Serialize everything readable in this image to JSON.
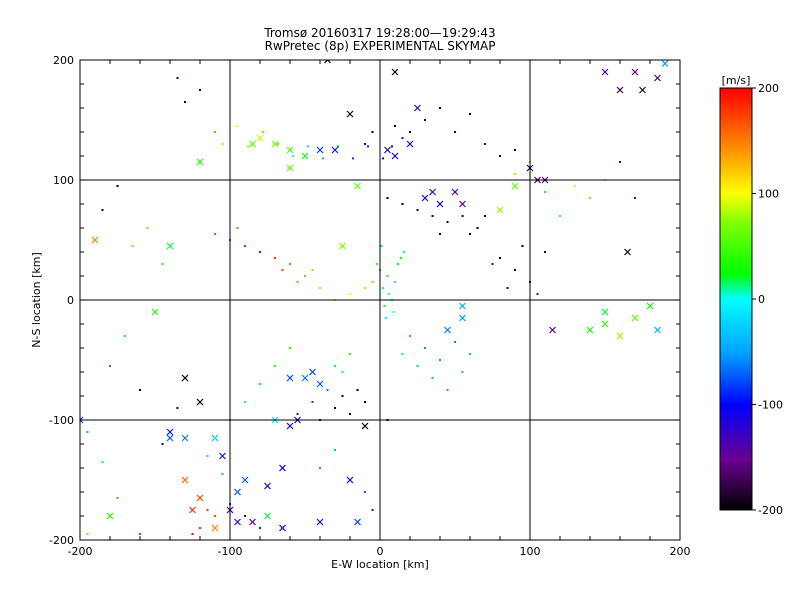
{
  "chart_data": {
    "type": "scatter",
    "title": "Tromsø 20160317 19:28:00—19:29:43",
    "subtitle": "RwPretec (8p) EXPERIMENTAL SKYMAP",
    "xlabel": "E-W location [km]",
    "ylabel": "N-S location [km]",
    "xlim": [
      -200,
      200
    ],
    "ylim": [
      -200,
      200
    ],
    "xticks": [
      "-200",
      "-100",
      "0",
      "100",
      "200"
    ],
    "yticks": [
      "-200",
      "-100",
      "0",
      "100",
      "200"
    ],
    "grid": true,
    "colorbar": {
      "label": "[m/s]",
      "min": -200,
      "max": 200,
      "ticks": [
        "-200",
        "-100",
        "0",
        "100",
        "200"
      ]
    },
    "series": [
      {
        "marker": "x",
        "points": [
          [
            -85,
            130,
            60
          ],
          [
            -80,
            135,
            90
          ],
          [
            -70,
            130,
            70
          ],
          [
            -60,
            125,
            50
          ],
          [
            -50,
            120,
            30
          ],
          [
            -40,
            125,
            -80
          ],
          [
            -30,
            125,
            -90
          ],
          [
            5,
            125,
            -120
          ],
          [
            10,
            120,
            -110
          ],
          [
            20,
            130,
            -120
          ],
          [
            30,
            85,
            -120
          ],
          [
            35,
            90,
            -130
          ],
          [
            40,
            80,
            -110
          ],
          [
            50,
            90,
            -140
          ],
          [
            55,
            80,
            -150
          ],
          [
            80,
            75,
            80
          ],
          [
            90,
            95,
            60
          ],
          [
            100,
            110,
            -180
          ],
          [
            105,
            100,
            -170
          ],
          [
            110,
            100,
            -160
          ],
          [
            -60,
            110,
            60
          ],
          [
            -120,
            115,
            30
          ],
          [
            -140,
            45,
            20
          ],
          [
            -190,
            50,
            150
          ],
          [
            -15,
            95,
            60
          ],
          [
            -40,
            -70,
            -70
          ],
          [
            -45,
            -60,
            -80
          ],
          [
            -50,
            -65,
            -60
          ],
          [
            -55,
            -100,
            -110
          ],
          [
            -60,
            -105,
            -120
          ],
          [
            -90,
            -150,
            -70
          ],
          [
            -95,
            -160,
            -80
          ],
          [
            -100,
            -175,
            -140
          ],
          [
            -85,
            -185,
            -150
          ],
          [
            -120,
            -165,
            170
          ],
          [
            -125,
            -175,
            180
          ],
          [
            -110,
            -190,
            150
          ],
          [
            -130,
            -150,
            160
          ],
          [
            -180,
            -180,
            40
          ],
          [
            -200,
            -100,
            -80
          ],
          [
            -140,
            -115,
            -70
          ],
          [
            -130,
            -115,
            -60
          ],
          [
            -110,
            -115,
            -40
          ],
          [
            -70,
            -100,
            -10
          ],
          [
            -65,
            -190,
            -100
          ],
          [
            -40,
            -185,
            -130
          ],
          [
            -20,
            -150,
            -110
          ],
          [
            -15,
            -185,
            -80
          ],
          [
            -75,
            -180,
            20
          ],
          [
            115,
            -25,
            -140
          ],
          [
            140,
            -25,
            30
          ],
          [
            150,
            -20,
            40
          ],
          [
            160,
            -30,
            80
          ],
          [
            170,
            -15,
            60
          ],
          [
            180,
            -5,
            30
          ],
          [
            150,
            -10,
            20
          ],
          [
            185,
            -25,
            -40
          ],
          [
            165,
            40,
            -190
          ],
          [
            170,
            190,
            -150
          ],
          [
            185,
            185,
            -160
          ],
          [
            175,
            175,
            -180
          ],
          [
            160,
            175,
            -170
          ],
          [
            150,
            190,
            -130
          ],
          [
            190,
            197,
            -50
          ],
          [
            -150,
            -10,
            30
          ],
          [
            -140,
            -110,
            -90
          ],
          [
            -60,
            -65,
            -75
          ],
          [
            -20,
            155,
            -190
          ],
          [
            25,
            160,
            -120
          ],
          [
            -25,
            45,
            70
          ],
          [
            55,
            -5,
            -40
          ],
          [
            55,
            -15,
            -50
          ],
          [
            45,
            -25,
            -60
          ],
          [
            -130,
            -65,
            -200
          ],
          [
            -120,
            -85,
            -200
          ],
          [
            -10,
            -105,
            -200
          ],
          [
            -35,
            200,
            -190
          ],
          [
            10,
            190,
            -200
          ],
          [
            -95,
            -185,
            -130
          ],
          [
            -105,
            -130,
            -90
          ],
          [
            -75,
            -155,
            -110
          ],
          [
            -65,
            -140,
            -100
          ]
        ]
      },
      {
        "marker": "dot",
        "points": [
          [
            -110,
            140,
            150
          ],
          [
            -105,
            130,
            120
          ],
          [
            -95,
            145,
            100
          ],
          [
            -88,
            128,
            80
          ],
          [
            -78,
            140,
            60
          ],
          [
            -68,
            130,
            40
          ],
          [
            -58,
            120,
            0
          ],
          [
            -48,
            128,
            -20
          ],
          [
            -38,
            118,
            -40
          ],
          [
            -28,
            128,
            -60
          ],
          [
            -18,
            118,
            -80
          ],
          [
            -8,
            128,
            -90
          ],
          [
            2,
            118,
            -100
          ],
          [
            8,
            128,
            -110
          ],
          [
            15,
            135,
            -120
          ],
          [
            -5,
            140,
            -200
          ],
          [
            10,
            145,
            -200
          ],
          [
            20,
            140,
            -180
          ],
          [
            -10,
            130,
            -170
          ],
          [
            5,
            85,
            -200
          ],
          [
            15,
            80,
            -200
          ],
          [
            25,
            75,
            -190
          ],
          [
            35,
            70,
            -200
          ],
          [
            45,
            65,
            -200
          ],
          [
            55,
            70,
            -190
          ],
          [
            65,
            60,
            -200
          ],
          [
            70,
            70,
            -180
          ],
          [
            60,
            55,
            -200
          ],
          [
            40,
            55,
            -190
          ],
          [
            0,
            25,
            20
          ],
          [
            5,
            20,
            40
          ],
          [
            10,
            15,
            10
          ],
          [
            2,
            10,
            -10
          ],
          [
            6,
            5,
            0
          ],
          [
            8,
            0,
            10
          ],
          [
            3,
            -5,
            30
          ],
          [
            9,
            -10,
            0
          ],
          [
            4,
            -15,
            -10
          ],
          [
            12,
            30,
            20
          ],
          [
            14,
            35,
            30
          ],
          [
            16,
            40,
            10
          ],
          [
            -2,
            30,
            50
          ],
          [
            1,
            45,
            30
          ],
          [
            -5,
            15,
            60
          ],
          [
            -10,
            10,
            80
          ],
          [
            -20,
            5,
            100
          ],
          [
            -30,
            0,
            110
          ],
          [
            -40,
            10,
            120
          ],
          [
            -45,
            25,
            130
          ],
          [
            -50,
            20,
            140
          ],
          [
            -55,
            15,
            150
          ],
          [
            -60,
            30,
            160
          ],
          [
            -65,
            25,
            170
          ],
          [
            -70,
            35,
            180
          ],
          [
            -80,
            40,
            200
          ],
          [
            -90,
            45,
            190
          ],
          [
            -100,
            50,
            180
          ],
          [
            -110,
            55,
            170
          ],
          [
            -95,
            60,
            160
          ],
          [
            20,
            -30,
            -40
          ],
          [
            30,
            -40,
            -50
          ],
          [
            40,
            -50,
            -60
          ],
          [
            25,
            -55,
            -30
          ],
          [
            35,
            -65,
            -40
          ],
          [
            45,
            -75,
            -50
          ],
          [
            15,
            -45,
            -20
          ],
          [
            50,
            -35,
            -60
          ],
          [
            60,
            -45,
            -30
          ],
          [
            55,
            -60,
            -40
          ],
          [
            -20,
            -45,
            40
          ],
          [
            -25,
            -60,
            10
          ],
          [
            -30,
            -55,
            20
          ],
          [
            -35,
            -75,
            -60
          ],
          [
            -45,
            -85,
            -80
          ],
          [
            -55,
            -95,
            -90
          ],
          [
            -40,
            -100,
            -110
          ],
          [
            -30,
            -90,
            -200
          ],
          [
            -25,
            -80,
            -190
          ],
          [
            -15,
            -75,
            -200
          ],
          [
            -20,
            -95,
            -180
          ],
          [
            -10,
            -85,
            -200
          ],
          [
            -60,
            -40,
            40
          ],
          [
            -70,
            -55,
            30
          ],
          [
            -80,
            -70,
            20
          ],
          [
            -90,
            -85,
            10
          ],
          [
            -100,
            -100,
            0
          ],
          [
            -110,
            -115,
            -10
          ],
          [
            -115,
            -130,
            -20
          ],
          [
            -105,
            -145,
            -40
          ],
          [
            -95,
            -160,
            -60
          ],
          [
            -100,
            -170,
            -80
          ],
          [
            -90,
            -180,
            -120
          ],
          [
            -80,
            -190,
            -140
          ],
          [
            -110,
            -180,
            170
          ],
          [
            -120,
            -190,
            190
          ],
          [
            -125,
            -195,
            200
          ],
          [
            -115,
            -175,
            180
          ],
          [
            -160,
            -195,
            180
          ],
          [
            -175,
            -165,
            160
          ],
          [
            -195,
            -195,
            60
          ],
          [
            -160,
            -75,
            -200
          ],
          [
            -135,
            -90,
            -190
          ],
          [
            -145,
            -120,
            -180
          ],
          [
            100,
            115,
            60
          ],
          [
            90,
            105,
            80
          ],
          [
            110,
            90,
            40
          ],
          [
            120,
            70,
            20
          ],
          [
            130,
            95,
            90
          ],
          [
            140,
            85,
            70
          ],
          [
            150,
            100,
            110
          ],
          [
            160,
            115,
            -120
          ],
          [
            170,
            85,
            -140
          ],
          [
            80,
            35,
            -200
          ],
          [
            90,
            25,
            -190
          ],
          [
            100,
            15,
            -170
          ],
          [
            85,
            10,
            -180
          ],
          [
            95,
            45,
            -200
          ],
          [
            110,
            40,
            -180
          ],
          [
            75,
            30,
            -160
          ],
          [
            105,
            5,
            -150
          ],
          [
            30,
            150,
            -200
          ],
          [
            40,
            160,
            -190
          ],
          [
            50,
            140,
            -180
          ],
          [
            60,
            155,
            -200
          ],
          [
            70,
            130,
            -170
          ],
          [
            80,
            120,
            -190
          ],
          [
            90,
            125,
            -200
          ],
          [
            -130,
            165,
            -200
          ],
          [
            -120,
            175,
            -190
          ],
          [
            -135,
            185,
            -180
          ],
          [
            -175,
            95,
            -200
          ],
          [
            -185,
            75,
            -190
          ],
          [
            -155,
            60,
            70
          ],
          [
            -165,
            45,
            60
          ],
          [
            -145,
            30,
            40
          ],
          [
            -170,
            -30,
            20
          ],
          [
            -180,
            -55,
            -60
          ],
          [
            -195,
            -110,
            -40
          ],
          [
            -185,
            -135,
            -20
          ],
          [
            -10,
            -160,
            -70
          ],
          [
            -5,
            -175,
            -90
          ],
          [
            -40,
            -140,
            -50
          ],
          [
            -30,
            -125,
            -40
          ],
          [
            5,
            -100,
            -200
          ]
        ]
      }
    ]
  }
}
